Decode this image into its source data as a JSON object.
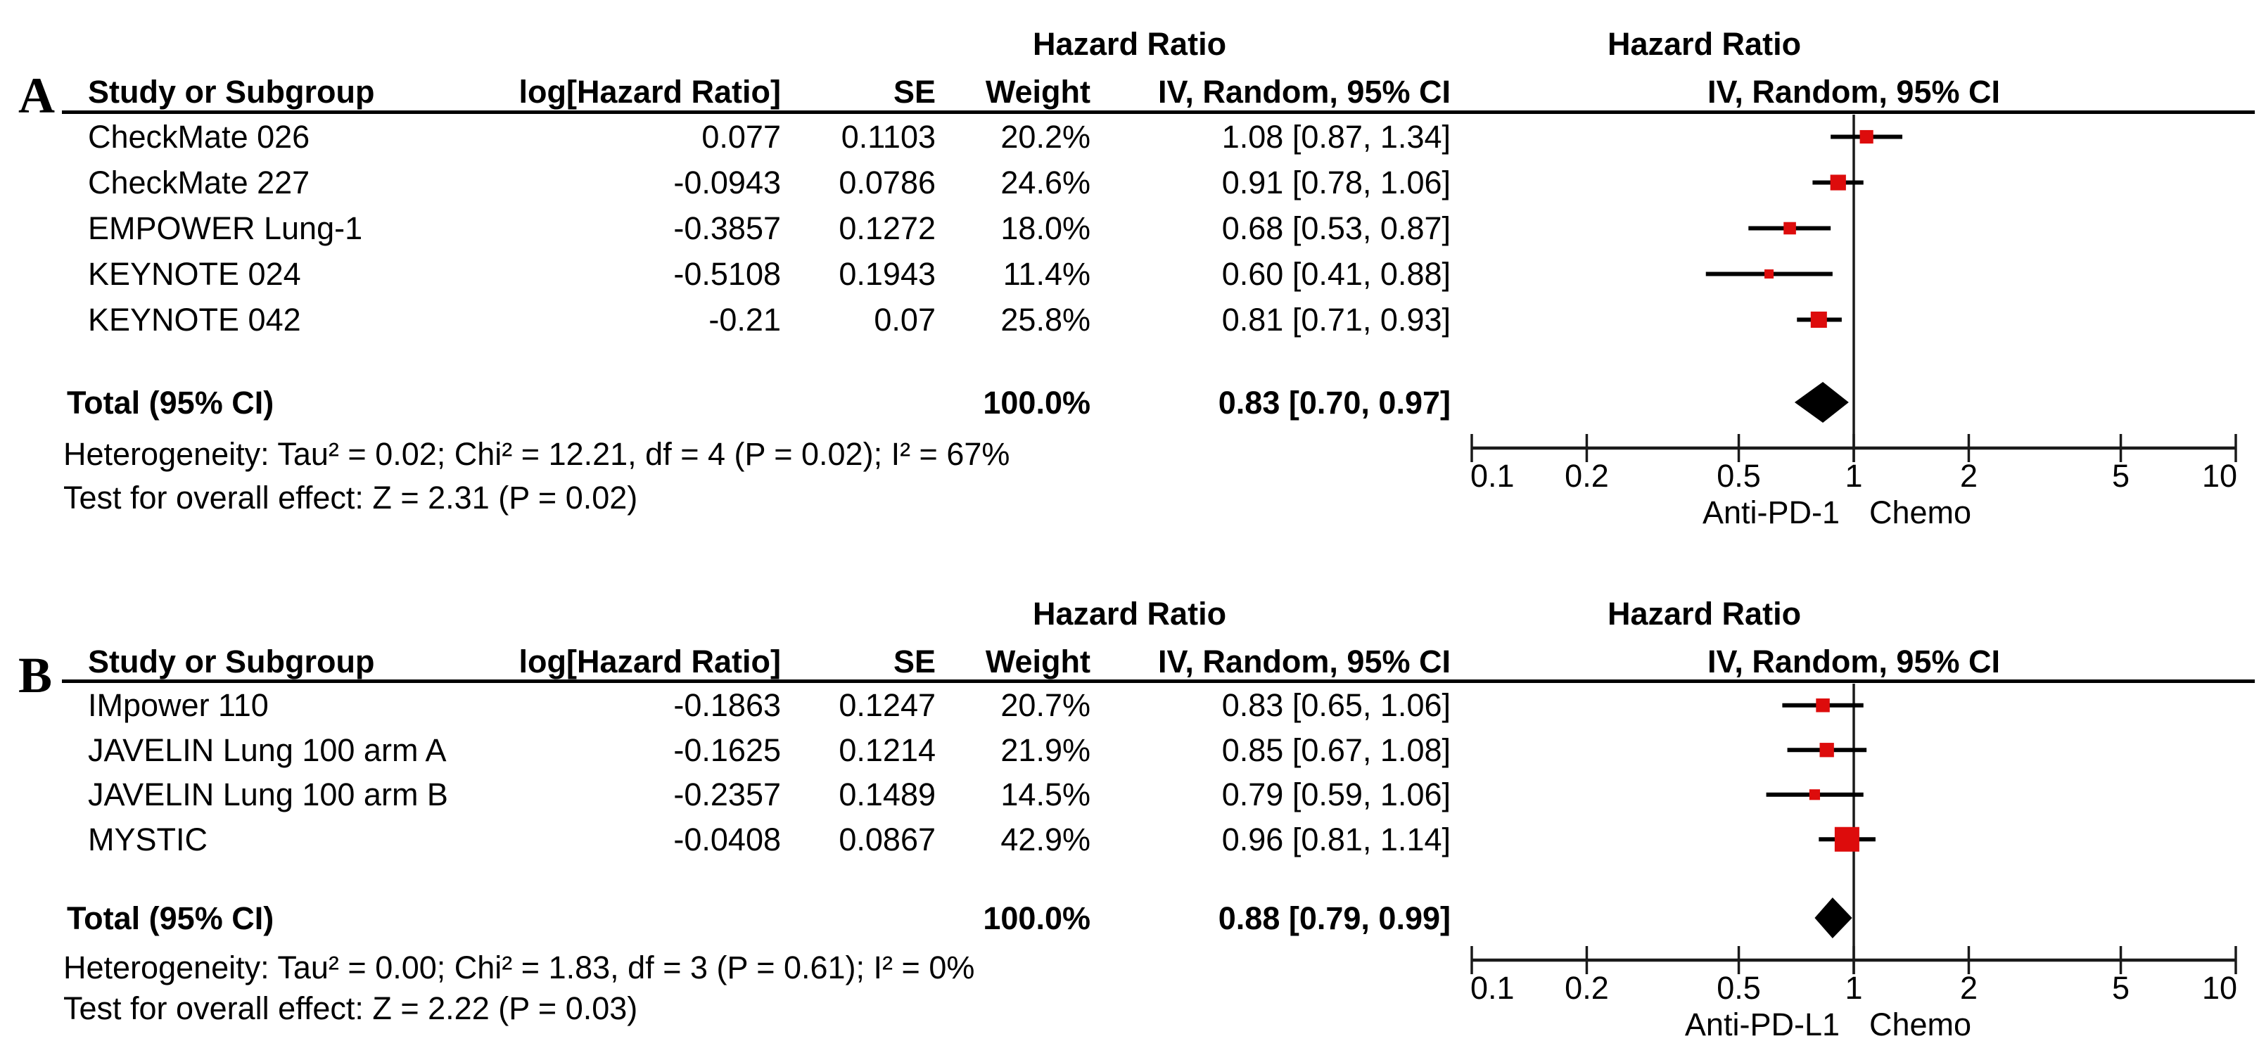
{
  "columns": {
    "study": "Study or Subgroup",
    "log_hr": "log[Hazard Ratio]",
    "se": "SE",
    "weight": "Weight",
    "effect_title": "Hazard Ratio",
    "effect_method": "IV, Random, 95% CI"
  },
  "style": {
    "marker_color": "#dd0c0c",
    "diamond_color": "#000000",
    "line_color": "#000000",
    "background": "#ffffff"
  },
  "chart_data": [
    {
      "type": "forest",
      "panel_letter": "A",
      "x_scale": "log",
      "x_range": [
        0.1,
        10
      ],
      "x_ticks": [
        "0.1",
        "0.2",
        "0.5",
        "1",
        "2",
        "5",
        "10"
      ],
      "favors_left": "Anti-PD-1",
      "favors_right": "Chemo",
      "studies": [
        {
          "name": "CheckMate 026",
          "log_hr": "0.077",
          "se": "0.1103",
          "weight": "20.2%",
          "ci_text": "1.08 [0.87, 1.34]",
          "hr": 1.08,
          "lo": 0.87,
          "hi": 1.34,
          "w": 20.2
        },
        {
          "name": "CheckMate 227",
          "log_hr": "-0.0943",
          "se": "0.0786",
          "weight": "24.6%",
          "ci_text": "0.91 [0.78, 1.06]",
          "hr": 0.91,
          "lo": 0.78,
          "hi": 1.06,
          "w": 24.6
        },
        {
          "name": "EMPOWER Lung-1",
          "log_hr": "-0.3857",
          "se": "0.1272",
          "weight": "18.0%",
          "ci_text": "0.68 [0.53, 0.87]",
          "hr": 0.68,
          "lo": 0.53,
          "hi": 0.87,
          "w": 18.0
        },
        {
          "name": "KEYNOTE 024",
          "log_hr": "-0.5108",
          "se": "0.1943",
          "weight": "11.4%",
          "ci_text": "0.60 [0.41, 0.88]",
          "hr": 0.6,
          "lo": 0.41,
          "hi": 0.88,
          "w": 11.4
        },
        {
          "name": "KEYNOTE 042",
          "log_hr": "-0.21",
          "se": "0.07",
          "weight": "25.8%",
          "ci_text": "0.81 [0.71, 0.93]",
          "hr": 0.81,
          "lo": 0.71,
          "hi": 0.93,
          "w": 25.8
        }
      ],
      "total": {
        "label": "Total (95% CI)",
        "weight": "100.0%",
        "ci_text": "0.83 [0.70, 0.97]",
        "hr": 0.83,
        "lo": 0.7,
        "hi": 0.97
      },
      "heterogeneity": "Heterogeneity: Tau² = 0.02; Chi² = 12.21, df = 4 (P = 0.02); I² = 67%",
      "overall_effect": "Test for overall effect: Z = 2.31 (P = 0.02)"
    },
    {
      "type": "forest",
      "panel_letter": "B",
      "x_scale": "log",
      "x_range": [
        0.1,
        10
      ],
      "x_ticks": [
        "0.1",
        "0.2",
        "0.5",
        "1",
        "2",
        "5",
        "10"
      ],
      "favors_left": "Anti-PD-L1",
      "favors_right": "Chemo",
      "studies": [
        {
          "name": "IMpower 110",
          "log_hr": "-0.1863",
          "se": "0.1247",
          "weight": "20.7%",
          "ci_text": "0.83 [0.65, 1.06]",
          "hr": 0.83,
          "lo": 0.65,
          "hi": 1.06,
          "w": 20.7
        },
        {
          "name": "JAVELIN Lung 100 arm A",
          "log_hr": "-0.1625",
          "se": "0.1214",
          "weight": "21.9%",
          "ci_text": "0.85 [0.67, 1.08]",
          "hr": 0.85,
          "lo": 0.67,
          "hi": 1.08,
          "w": 21.9
        },
        {
          "name": "JAVELIN Lung 100 arm B",
          "log_hr": "-0.2357",
          "se": "0.1489",
          "weight": "14.5%",
          "ci_text": "0.79 [0.59, 1.06]",
          "hr": 0.79,
          "lo": 0.59,
          "hi": 1.06,
          "w": 14.5
        },
        {
          "name": "MYSTIC",
          "log_hr": "-0.0408",
          "se": "0.0867",
          "weight": "42.9%",
          "ci_text": "0.96 [0.81, 1.14]",
          "hr": 0.96,
          "lo": 0.81,
          "hi": 1.14,
          "w": 42.9
        }
      ],
      "total": {
        "label": "Total (95% CI)",
        "weight": "100.0%",
        "ci_text": "0.88 [0.79, 0.99]",
        "hr": 0.88,
        "lo": 0.79,
        "hi": 0.99
      },
      "heterogeneity": "Heterogeneity: Tau² = 0.00; Chi² = 1.83, df = 3 (P = 0.61); I² = 0%",
      "overall_effect": "Test for overall effect: Z = 2.22 (P = 0.03)"
    }
  ]
}
